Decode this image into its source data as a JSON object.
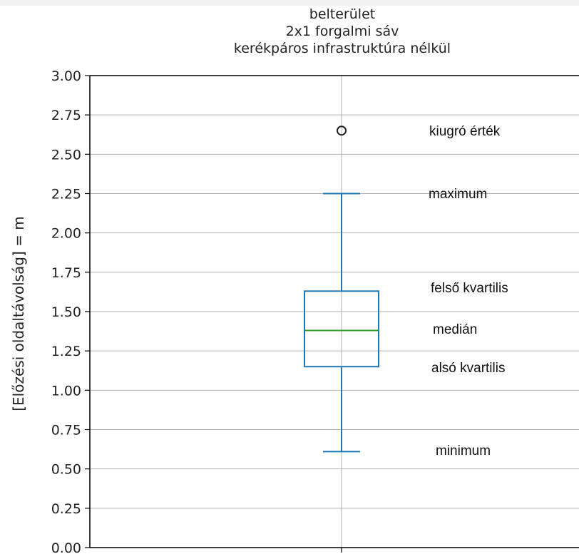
{
  "chart_data": {
    "type": "box",
    "title_lines": [
      "belterület",
      "2x1 forgalmi sáv",
      "kerékpáros infrastruktúra nélkül"
    ],
    "xlabel": "",
    "ylabel": "[Előzési oldaltávolság] = m",
    "ylim": [
      0.0,
      3.0
    ],
    "yticks": [
      "0.00",
      "0.25",
      "0.50",
      "0.75",
      "1.00",
      "1.25",
      "1.50",
      "1.75",
      "2.00",
      "2.25",
      "2.50",
      "2.75",
      "3.00"
    ],
    "grid": true,
    "box": {
      "whisker_low": 0.61,
      "q1": 1.15,
      "median": 1.38,
      "q3": 1.63,
      "whisker_high": 2.25,
      "outliers": [
        2.65
      ]
    },
    "annotations": {
      "outlier": "kiugró érték",
      "maximum": "maximum",
      "q3": "felső kvartilis",
      "median": "medián",
      "q1": "alsó kvartilis",
      "minimum": "minimum"
    },
    "colors": {
      "box": "#1f77b4",
      "median": "#2ca02c",
      "outlier": "#222222",
      "grid": "#b0b0b0"
    }
  }
}
